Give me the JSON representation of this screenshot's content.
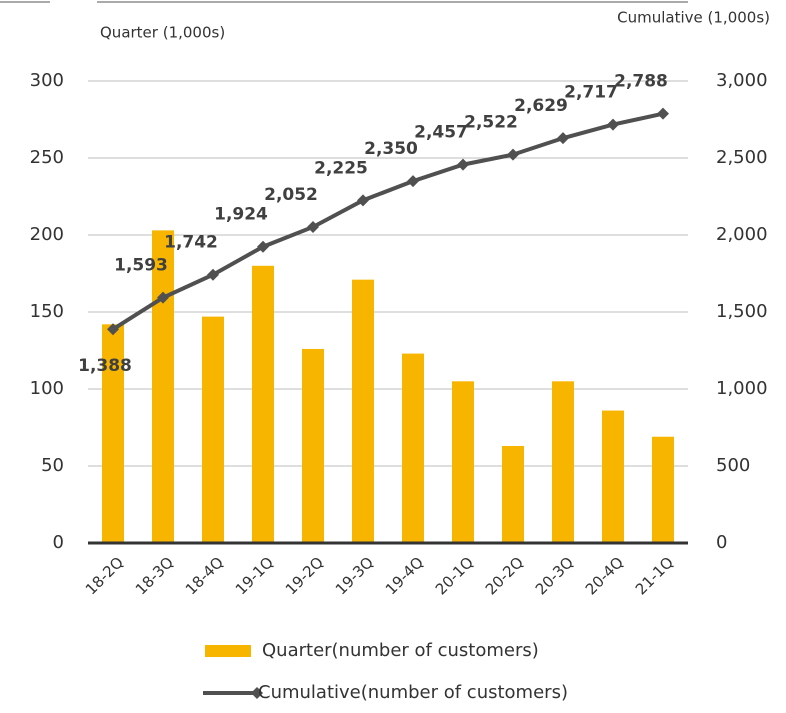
{
  "chart_data": {
    "type": "bar_line",
    "y_axis_label": "Quarter (1,000s)",
    "y2_axis_label": "Cumulative (1,000s)",
    "categories": [
      "18-2Q",
      "18-3Q",
      "18-4Q",
      "19-1Q",
      "19-2Q",
      "19-3Q",
      "19-4Q",
      "20-1Q",
      "20-2Q",
      "20-3Q",
      "20-4Q",
      "21-1Q"
    ],
    "series": [
      {
        "name": "Quarter(number of customers)",
        "color": "#f7b500",
        "type": "bar",
        "values": [
          142,
          203,
          147,
          180,
          126,
          171,
          123,
          105,
          63,
          105,
          86,
          69
        ]
      },
      {
        "name": "Cumulative(number of customers)",
        "color": "#505050",
        "type": "line",
        "axis": "y2",
        "values": [
          1388,
          1593,
          1742,
          1924,
          2052,
          2225,
          2350,
          2457,
          2522,
          2629,
          2717,
          2788
        ],
        "value_labels": [
          "1,388",
          "1,593",
          "1,742",
          "1,924",
          "2,052",
          "2,225",
          "2,350",
          "2,457",
          "2,522",
          "2,629",
          "2,717",
          "2,788"
        ]
      }
    ],
    "ylim": [
      0,
      300
    ],
    "yticks": [
      0,
      50,
      100,
      150,
      200,
      250,
      300
    ],
    "y2lim": [
      0,
      3000
    ],
    "y2ticks": [
      0,
      500,
      {
        "value": 1000,
        "label": "1,000"
      },
      {
        "value": 1500,
        "label": "1,500"
      },
      {
        "value": 2000,
        "label": "2,000"
      },
      {
        "value": 2500,
        "label": "2,500"
      },
      {
        "value": 3000,
        "label": "3,000"
      }
    ],
    "grid": true
  }
}
